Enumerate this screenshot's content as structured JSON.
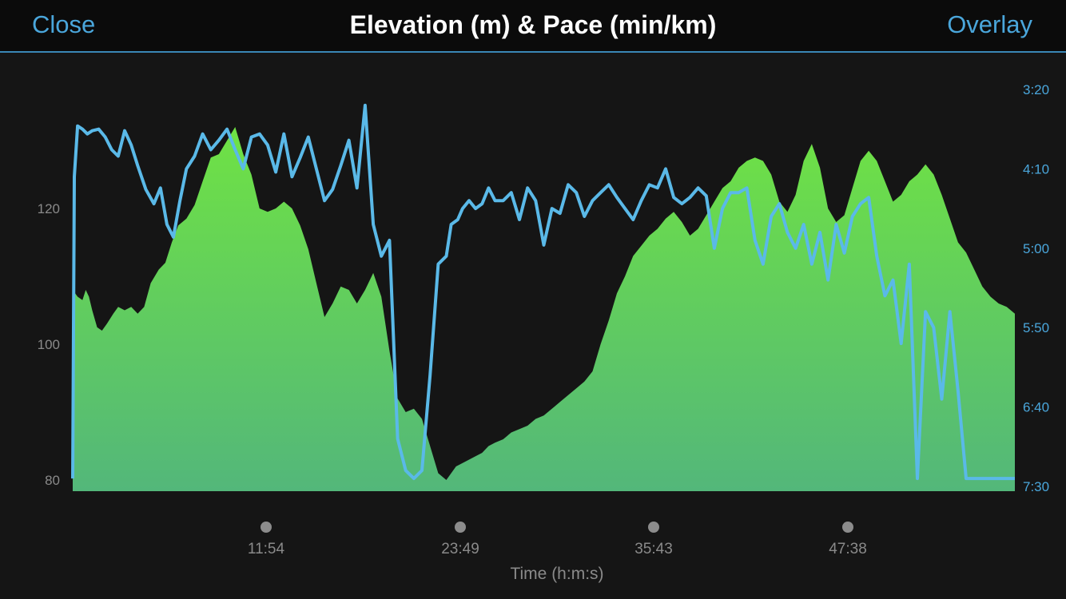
{
  "header": {
    "close_label": "Close",
    "title": "Elevation (m) & Pace (min/km)",
    "overlay_label": "Overlay"
  },
  "colors": {
    "elevation_fill_top": "#6fe244",
    "elevation_fill_bottom": "#53b77a",
    "pace_line": "#5ab9e8",
    "scrubber_dot": "#8c8c8c"
  },
  "chart_data": {
    "type": "area",
    "title": "Elevation (m) & Pace (min/km)",
    "xlabel": "Time (h:m:s)",
    "x_tick_labels": [
      "11:54",
      "23:49",
      "35:43",
      "47:38"
    ],
    "x_range_min": [
      0,
      58
    ],
    "y_left_label": "",
    "y_left_ticks": [
      80,
      100,
      120
    ],
    "y_left_range": [
      78,
      140
    ],
    "y_right_ticks": [
      "3:20",
      "4:10",
      "5:00",
      "5:50",
      "6:40",
      "7:30"
    ],
    "y_right_range_sec": [
      200,
      450
    ],
    "grid": false,
    "series": [
      {
        "name": "Elevation (m)",
        "axis": "left",
        "style": "area",
        "x_min": [
          0,
          0.3,
          0.6,
          0.8,
          1,
          1.2,
          1.5,
          1.8,
          2.1,
          2.5,
          2.8,
          3.2,
          3.6,
          4,
          4.4,
          4.8,
          5.3,
          5.7,
          6.1,
          6.5,
          7,
          7.5,
          8,
          8.5,
          9,
          9.5,
          10,
          10.5,
          11,
          11.5,
          12,
          12.5,
          13,
          13.5,
          14,
          14.5,
          15,
          15.5,
          16,
          16.5,
          17,
          17.5,
          18,
          18.5,
          19,
          19.5,
          20,
          20.5,
          21,
          21.5,
          22,
          22.5,
          23,
          23.3,
          23.6,
          24,
          24.4,
          24.8,
          25.2,
          25.6,
          26,
          26.5,
          27,
          27.5,
          28,
          28.5,
          29,
          29.5,
          30,
          30.5,
          31,
          31.5,
          32,
          32.5,
          33,
          33.5,
          34,
          34.5,
          35,
          35.5,
          36,
          36.5,
          37,
          37.5,
          38,
          38.5,
          39,
          39.5,
          40,
          40.5,
          41,
          41.5,
          42,
          42.5,
          43,
          43.5,
          44,
          44.5,
          45,
          45.5,
          46,
          46.5,
          47,
          47.5,
          48,
          48.5,
          49,
          49.5,
          50,
          50.5,
          51,
          51.5,
          52,
          52.5,
          53,
          53.5,
          54,
          54.5,
          55,
          55.5,
          56,
          56.5,
          57,
          57.5,
          58
        ],
        "values": [
          108,
          107,
          106.5,
          108,
          107,
          105,
          102.5,
          102,
          103,
          104.5,
          105.5,
          105,
          105.5,
          104.5,
          105.5,
          109,
          111,
          112,
          115,
          117.5,
          118.5,
          120.5,
          124,
          127.5,
          128,
          130,
          132,
          128,
          125,
          120,
          119.5,
          120,
          121,
          120,
          117.5,
          114,
          109,
          104,
          106,
          108.5,
          108,
          106,
          108,
          110.5,
          107,
          99,
          92,
          90,
          90.5,
          89,
          85,
          81,
          80,
          81,
          82,
          82.5,
          83,
          83.5,
          84,
          85,
          85.5,
          86,
          87,
          87.5,
          88,
          89,
          89.5,
          90.5,
          91.5,
          92.5,
          93.5,
          94.5,
          96,
          100,
          103.5,
          107.5,
          110,
          113,
          114.5,
          116,
          117,
          118.5,
          119.5,
          118,
          116,
          117,
          119,
          121,
          123,
          124,
          126,
          127,
          127.5,
          127,
          125,
          121,
          119.5,
          122,
          127,
          129.5,
          126,
          120,
          118,
          119,
          123,
          127,
          128.5,
          127,
          124,
          121,
          122,
          124,
          125,
          126.5,
          125,
          122,
          118.5,
          115,
          113.5,
          111,
          108.5,
          107,
          106,
          105.5,
          104.5,
          104
        ]
      },
      {
        "name": "Pace (min/km)",
        "axis": "right",
        "style": "line",
        "x_min": [
          0,
          0.1,
          0.3,
          0.6,
          0.9,
          1.2,
          1.6,
          2,
          2.4,
          2.8,
          3.2,
          3.6,
          4,
          4.5,
          5,
          5.4,
          5.8,
          6.2,
          6.6,
          7,
          7.5,
          8,
          8.5,
          9,
          9.5,
          10,
          10.5,
          11,
          11.5,
          12,
          12.5,
          13,
          13.5,
          14,
          14.5,
          15,
          15.5,
          16,
          16.5,
          17,
          17.5,
          18,
          18.5,
          19,
          19.5,
          20,
          20.5,
          21,
          21.5,
          22,
          22.5,
          23,
          23.3,
          23.7,
          24,
          24.4,
          24.8,
          25.2,
          25.6,
          26,
          26.5,
          27,
          27.5,
          28,
          28.5,
          29,
          29.5,
          30,
          30.5,
          31,
          31.5,
          32,
          32.5,
          33,
          33.5,
          34,
          34.5,
          35,
          35.5,
          36,
          36.5,
          37,
          37.5,
          38,
          38.5,
          39,
          39.5,
          40,
          40.5,
          41,
          41.5,
          42,
          42.5,
          43,
          43.5,
          44,
          44.5,
          45,
          45.5,
          46,
          46.5,
          47,
          47.5,
          48,
          48.5,
          49,
          49.5,
          50,
          50.5,
          51,
          51.5,
          52,
          52.5,
          53,
          53.5,
          54,
          54.5,
          55,
          55.5,
          56,
          56.5,
          57,
          57.5,
          58
        ],
        "values": [
          445,
          255,
          223,
          225,
          228,
          226,
          225,
          230,
          238,
          242,
          226,
          235,
          248,
          263,
          272,
          262,
          285,
          293,
          270,
          250,
          242,
          228,
          238,
          232,
          225,
          238,
          250,
          230,
          228,
          235,
          252,
          228,
          255,
          243,
          230,
          250,
          270,
          263,
          248,
          232,
          262,
          210,
          285,
          305,
          295,
          420,
          440,
          445,
          440,
          380,
          310,
          305,
          285,
          282,
          275,
          270,
          275,
          272,
          262,
          270,
          270,
          265,
          282,
          262,
          270,
          298,
          275,
          278,
          260,
          265,
          280,
          270,
          265,
          260,
          268,
          275,
          282,
          270,
          260,
          262,
          250,
          268,
          272,
          268,
          262,
          267,
          300,
          275,
          265,
          265,
          262,
          295,
          310,
          280,
          272,
          290,
          300,
          285,
          310,
          290,
          320,
          285,
          303,
          280,
          272,
          268,
          305,
          330,
          320,
          360,
          310,
          445,
          340,
          350,
          395,
          340,
          390,
          445,
          445,
          445,
          445,
          445,
          445,
          445
        ]
      }
    ]
  }
}
